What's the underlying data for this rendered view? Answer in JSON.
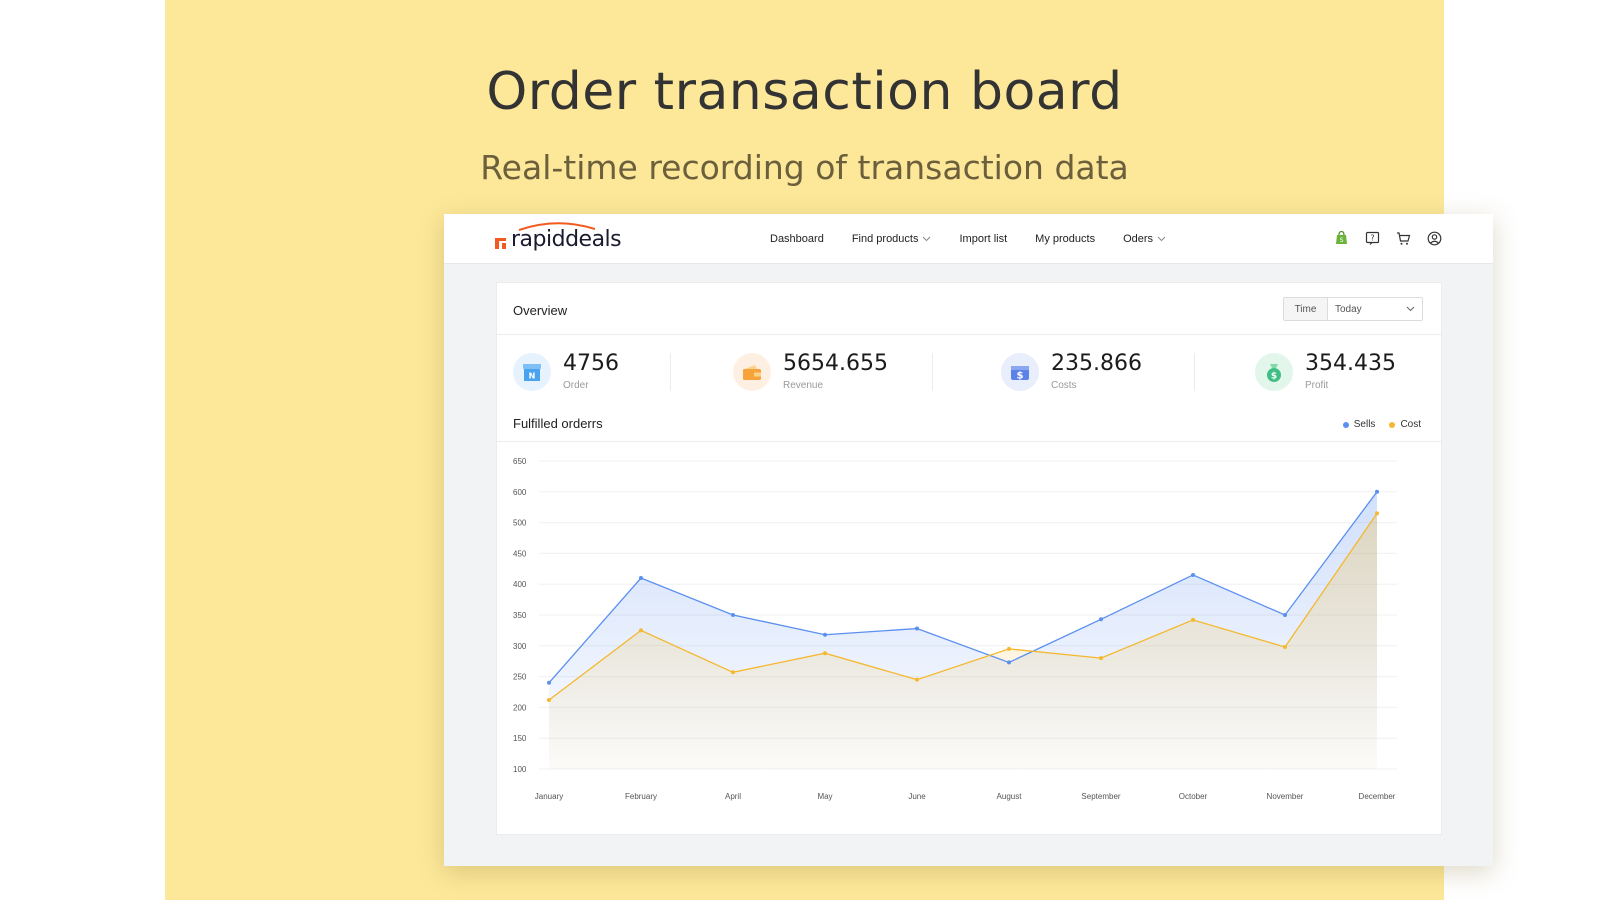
{
  "headline": "Order transaction board",
  "subhead": "Real-time recording of transaction data",
  "brand": {
    "name": "rapiddeals"
  },
  "nav": {
    "items": [
      {
        "label": "Dashboard",
        "dropdown": false
      },
      {
        "label": "Find products",
        "dropdown": true
      },
      {
        "label": "Import list",
        "dropdown": false
      },
      {
        "label": "My products",
        "dropdown": false
      },
      {
        "label": "Oders",
        "dropdown": true
      }
    ],
    "icons": [
      "shopify-bag-icon",
      "help-icon",
      "cart-icon",
      "user-icon"
    ]
  },
  "overview": {
    "title": "Overview",
    "time_label": "Time",
    "time_value": "Today",
    "stats": [
      {
        "value": "4756",
        "label": "Order",
        "icon": "order-icon",
        "color": "#5aa9f0"
      },
      {
        "value": "5654.655",
        "label": "Revenue",
        "icon": "wallet-icon",
        "color": "#f8a63d"
      },
      {
        "value": "235.866",
        "label": "Costs",
        "icon": "dollar-icon",
        "color": "#5b82e8"
      },
      {
        "value": "354.435",
        "label": "Profit",
        "icon": "money-bag-icon",
        "color": "#3fbf84"
      }
    ]
  },
  "chart_panel": {
    "title": "Fulfilled orderrs"
  },
  "chart_data": {
    "type": "area",
    "categories": [
      "January",
      "February",
      "April",
      "May",
      "June",
      "August",
      "September",
      "October",
      "November",
      "December"
    ],
    "yticks": [
      100,
      150,
      200,
      250,
      300,
      350,
      400,
      450,
      500,
      600,
      650
    ],
    "ylim": [
      100,
      650
    ],
    "grid": true,
    "legend": "top-right",
    "series": [
      {
        "name": "Sells",
        "color": "#5b8ff0",
        "values": [
          240,
          410,
          350,
          318,
          328,
          273,
          343,
          415,
          350,
          600
        ]
      },
      {
        "name": "Cost",
        "color": "#f5b82e",
        "values": [
          212,
          325,
          257,
          288,
          245,
          295,
          280,
          342,
          298,
          530
        ]
      }
    ]
  }
}
